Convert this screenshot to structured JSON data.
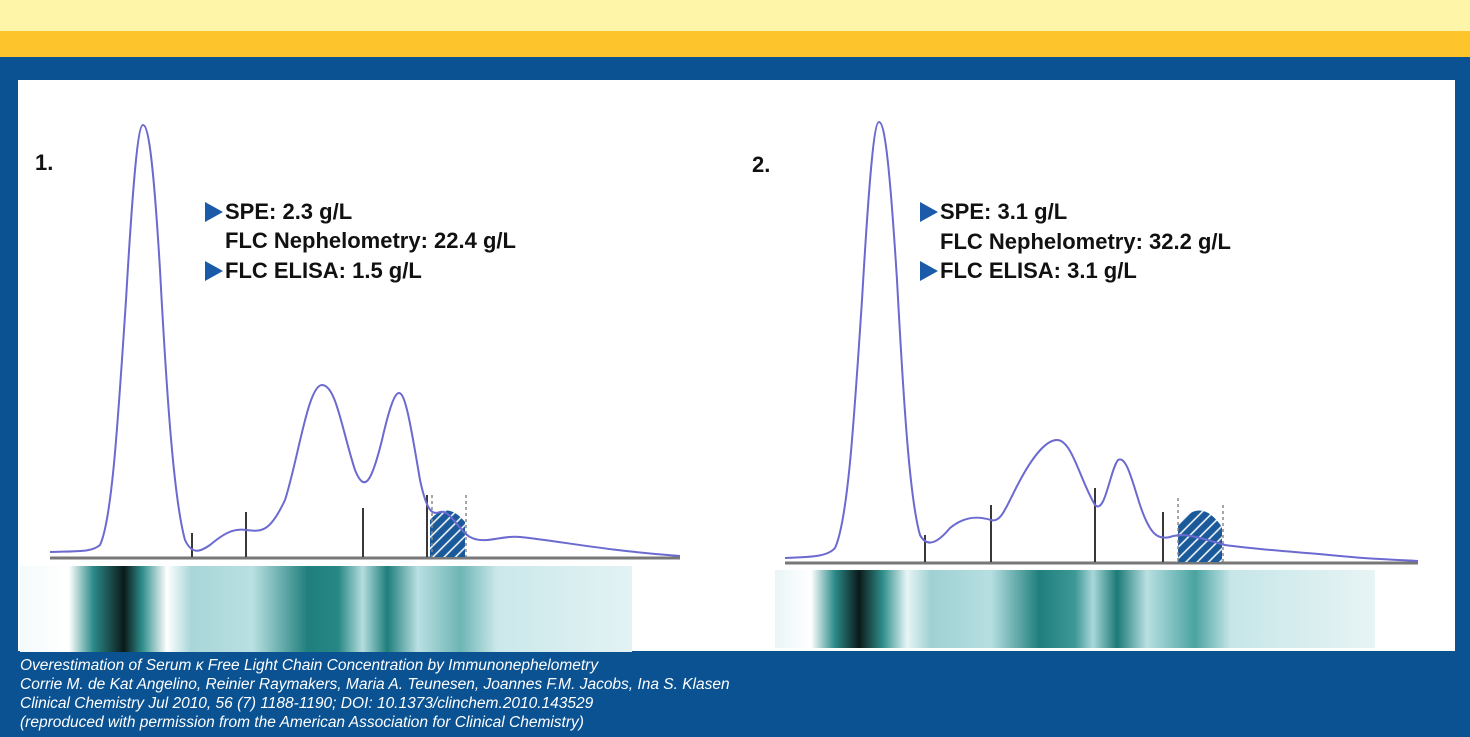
{
  "panels": [
    {
      "label": "1.",
      "lines": [
        "SPE: 2.3 g/L",
        "FLC Nephelometry: 22.4 g/L",
        "FLC ELISA: 1.5 g/L"
      ]
    },
    {
      "label": "2.",
      "lines": [
        "SPE: 3.1 g/L",
        "FLC Nephelometry: 32.2 g/L",
        "FLC ELISA: 3.1 g/L"
      ]
    }
  ],
  "caption": [
    "Overestimation of Serum κ Free Light Chain Concentration by Immunonephelometry",
    "Corrie M. de Kat Angelino, Reinier Raymakers, Maria A. Teunesen, Joannes F.M. Jacobs, Ina S. Klasen",
    "Clinical Chemistry Jul 2010, 56 (7) 1188-1190; DOI: 10.1373/clinchem.2010.143529",
    "(reproduced with permission from the American Association for Clinical Chemistry)"
  ]
}
